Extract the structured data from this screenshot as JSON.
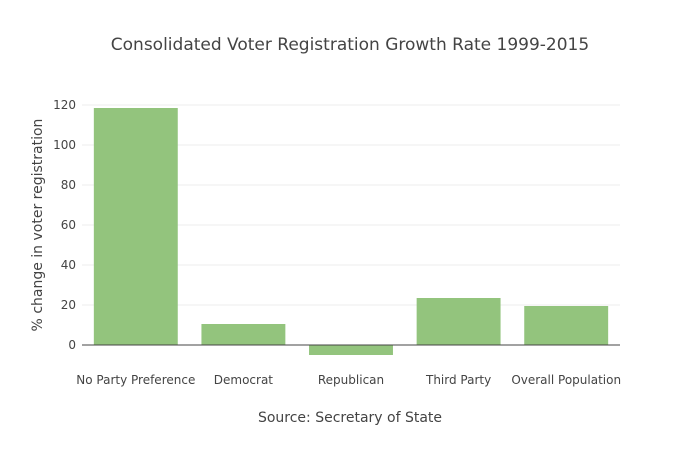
{
  "chart_data": {
    "type": "bar",
    "title": "Consolidated Voter Registration Growth Rate 1999-2015",
    "xlabel": "Source: Secretary of State",
    "ylabel": "% change in voter registration",
    "categories": [
      "No Party Preference",
      "Democrat",
      "Republican",
      "Third Party",
      "Overall Population"
    ],
    "values": [
      118.5,
      10.5,
      -5,
      23.5,
      19.5
    ],
    "ylim": [
      -10,
      125
    ],
    "yticks": [
      0,
      20,
      40,
      60,
      80,
      100,
      120
    ],
    "grid": true,
    "legend": "none",
    "colors": {
      "bar": "#93c47d",
      "grid": "#eeeeee",
      "axis": "#444444",
      "text": "#444444"
    }
  }
}
